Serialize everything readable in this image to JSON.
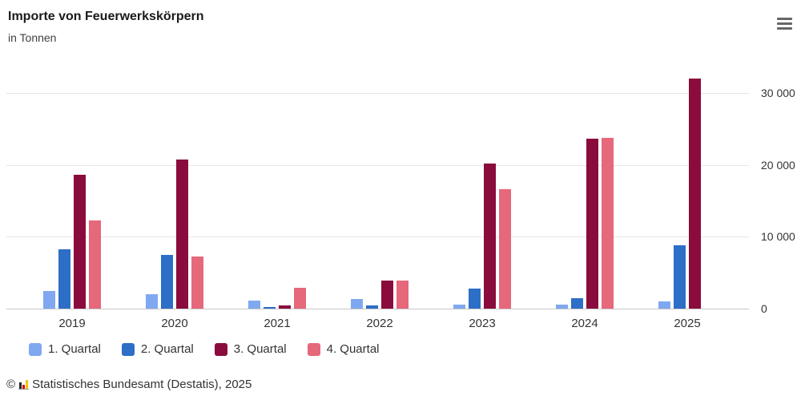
{
  "header": {
    "title": "Importe von Feuerwerkskörpern",
    "subtitle": "in Tonnen"
  },
  "icons": {
    "context_menu": "hamburger-menu-icon",
    "source_logo": "destatis-bar-chart-logo-icon"
  },
  "chart_data": {
    "type": "bar",
    "title": "Importe von Feuerwerkskörpern",
    "unit": "in Tonnen",
    "categories": [
      "2019",
      "2020",
      "2021",
      "2022",
      "2023",
      "2024",
      "2025"
    ],
    "series": [
      {
        "name": "1. Quartal",
        "color": "#7FA8F0",
        "values": [
          2400,
          2000,
          1100,
          1300,
          600,
          600,
          1000
        ]
      },
      {
        "name": "2. Quartal",
        "color": "#2D6EC6",
        "values": [
          8300,
          7500,
          200,
          400,
          2800,
          1400,
          8800
        ]
      },
      {
        "name": "3. Quartal",
        "color": "#8A0C3C",
        "values": [
          18600,
          20700,
          500,
          3900,
          20200,
          23600,
          32000
        ]
      },
      {
        "name": "4. Quartal",
        "color": "#E5687B",
        "values": [
          12300,
          7300,
          2900,
          3900,
          16600,
          23700,
          null
        ]
      }
    ],
    "xlabel": "",
    "ylabel": "",
    "ylim": [
      0,
      33000
    ],
    "yticks": [
      0,
      10000,
      20000,
      30000
    ],
    "ytick_labels": [
      "0",
      "10 000",
      "20 000",
      "30 000"
    ],
    "grid": true,
    "y_axis_side": "right",
    "legend_position": "bottom-left"
  },
  "footer": {
    "copyright": "©",
    "source": "Statistisches Bundesamt (Destatis), 2025"
  }
}
